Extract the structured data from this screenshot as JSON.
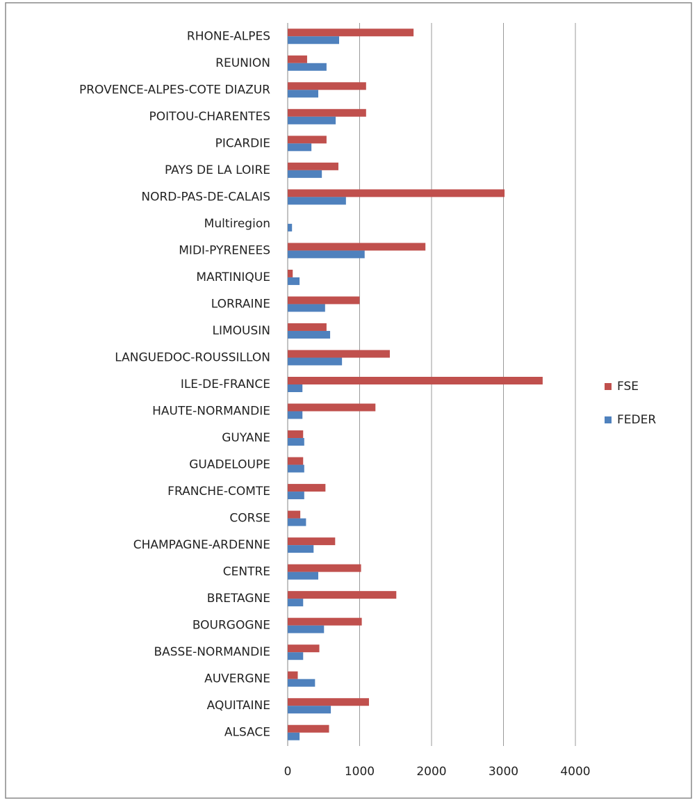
{
  "chart_data": {
    "type": "hbar",
    "categories": [
      "ALSACE",
      "AQUITAINE",
      "AUVERGNE",
      "BASSE-NORMANDIE",
      "BOURGOGNE",
      "BRETAGNE",
      "CENTRE",
      "CHAMPAGNE-ARDENNE",
      "CORSE",
      "FRANCHE-COMTE",
      "GUADELOUPE",
      "GUYANE",
      "HAUTE-NORMANDIE",
      "ILE-DE-FRANCE",
      "LANGUEDOC-ROUSSILLON",
      "LIMOUSIN",
      "LORRAINE",
      "MARTINIQUE",
      "MIDI-PYRENEES",
      "Multiregion",
      "NORD-PAS-DE-CALAIS",
      "PAYS DE LA LOIRE",
      "PICARDIE",
      "POITOU-CHARENTES",
      "PROVENCE-ALPES-COTE DIAZUR",
      "REUNION",
      "RHONE-ALPES"
    ],
    "series": [
      {
        "name": "FSE",
        "color": "#c0504d",
        "values": [
          575,
          1130,
          140,
          440,
          1030,
          1510,
          1020,
          660,
          175,
          525,
          215,
          215,
          1220,
          3545,
          1420,
          540,
          1000,
          70,
          1915,
          0,
          3015,
          705,
          540,
          1090,
          1090,
          270,
          1750
        ]
      },
      {
        "name": "FEDER",
        "color": "#4f81bd",
        "values": [
          165,
          600,
          380,
          215,
          505,
          215,
          425,
          360,
          255,
          230,
          230,
          230,
          205,
          205,
          755,
          590,
          520,
          165,
          1070,
          60,
          810,
          475,
          330,
          667,
          425,
          540,
          715
        ]
      }
    ],
    "xlim": [
      0,
      4000
    ],
    "xticks": [
      0,
      1000,
      2000,
      3000,
      4000
    ],
    "grid": true,
    "legend": "right"
  }
}
